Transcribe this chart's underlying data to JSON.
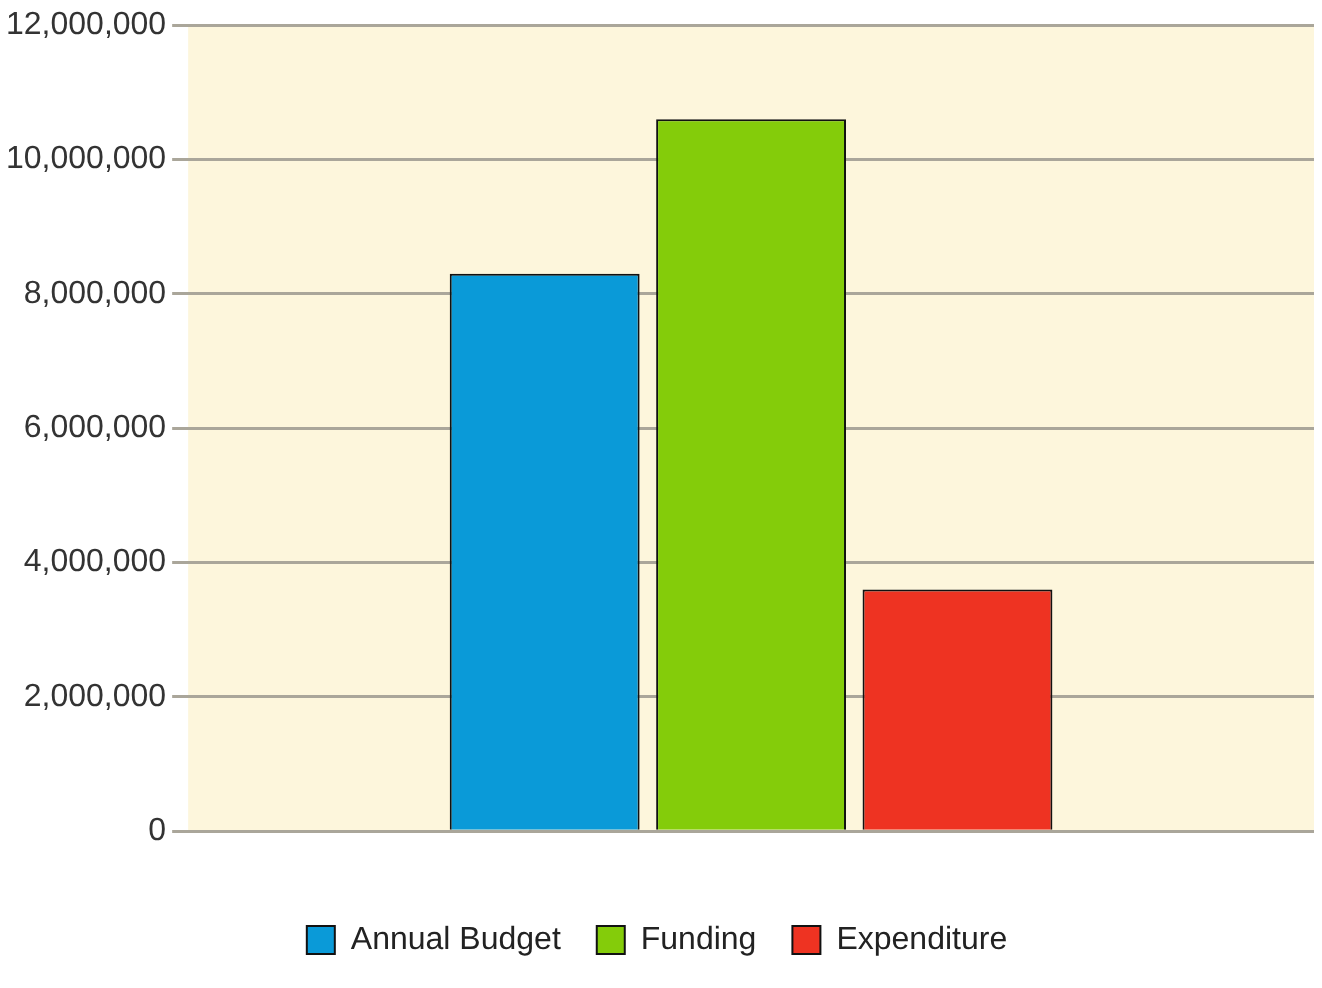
{
  "chart_data": {
    "type": "bar",
    "categories": [
      null
    ],
    "series": [
      {
        "name": "Annual Budget",
        "color": "#0a9ad8",
        "values": [
          8300000
        ]
      },
      {
        "name": "Funding",
        "color": "#84cc0a",
        "values": [
          10600000
        ]
      },
      {
        "name": "Expenditure",
        "color": "#ee3322",
        "values": [
          3600000
        ]
      }
    ],
    "ylim": [
      0,
      12000000
    ],
    "yticks": [
      0,
      {
        "value": 2000000,
        "label": "2,000,000"
      },
      {
        "value": 4000000,
        "label": "4,000,000"
      },
      {
        "value": 6000000,
        "label": "6,000,000"
      },
      {
        "value": 8000000,
        "label": "8,000,000"
      },
      {
        "value": 10000000,
        "label": "10,000,000"
      },
      {
        "value": 12000000,
        "label": "12,000,000"
      }
    ],
    "grid": "y",
    "legend": "bottom"
  }
}
